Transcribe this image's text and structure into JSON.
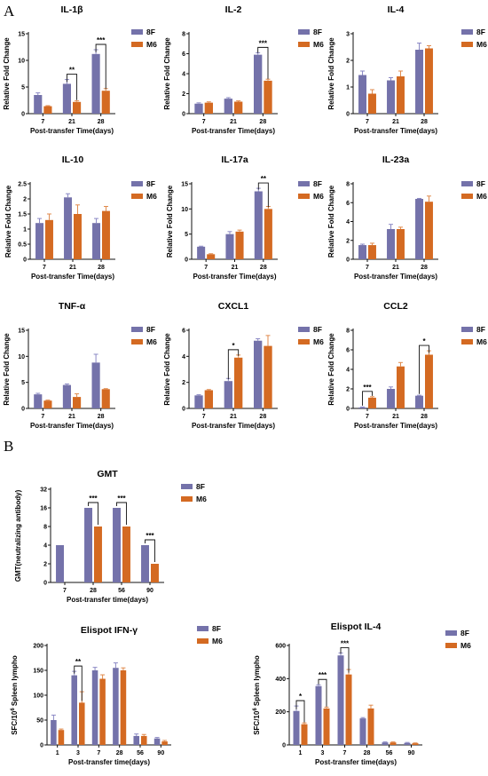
{
  "panel_labels": [
    "A",
    "B"
  ],
  "colors": {
    "8F": "#7472aa",
    "M6": "#d46a22",
    "axis": "#111111",
    "err_8F": "#8a88c4",
    "err_M6": "#e08a4c"
  },
  "chart_data": [
    {
      "type": "bar",
      "title": "IL-1β",
      "xlabel": "Post-transfer Time(days)",
      "ylabel": "Relative Fold Change",
      "categories": [
        "7",
        "21",
        "28"
      ],
      "yticks": [
        0,
        5,
        10,
        15
      ],
      "ylim": [
        0,
        15
      ],
      "series": [
        {
          "name": "8F",
          "values": [
            3.5,
            5.6,
            11.2
          ],
          "errors": [
            0.4,
            0.8,
            0.8
          ]
        },
        {
          "name": "M6",
          "values": [
            1.4,
            2.2,
            4.3
          ],
          "errors": [
            0.1,
            0.2,
            0.4
          ]
        }
      ],
      "annotations": [
        {
          "category": "21",
          "label": "**"
        },
        {
          "category": "28",
          "label": "***"
        }
      ]
    },
    {
      "type": "bar",
      "title": "IL-2",
      "xlabel": "Post-transfer Time(days)",
      "ylabel": "Relative Fold Change",
      "categories": [
        "7",
        "21",
        "28"
      ],
      "yticks": [
        0,
        2,
        4,
        6,
        8
      ],
      "ylim": [
        0,
        8
      ],
      "series": [
        {
          "name": "8F",
          "values": [
            1.0,
            1.5,
            5.9
          ],
          "errors": [
            0.08,
            0.1,
            0.2
          ]
        },
        {
          "name": "M6",
          "values": [
            1.1,
            1.2,
            3.3
          ],
          "errors": [
            0.08,
            0.08,
            0.15
          ]
        }
      ],
      "annotations": [
        {
          "category": "28",
          "label": "***"
        }
      ]
    },
    {
      "type": "bar",
      "title": "IL-4",
      "xlabel": "Post-transfer Time(days)",
      "ylabel": "Relative Fold Change",
      "categories": [
        "7",
        "21",
        "28"
      ],
      "yticks": [
        0,
        1,
        2,
        3
      ],
      "ylim": [
        0,
        3
      ],
      "series": [
        {
          "name": "8F",
          "values": [
            1.45,
            1.25,
            2.4
          ],
          "errors": [
            0.15,
            0.1,
            0.25
          ]
        },
        {
          "name": "M6",
          "values": [
            0.75,
            1.4,
            2.45
          ],
          "errors": [
            0.15,
            0.2,
            0.1
          ]
        }
      ],
      "annotations": []
    },
    {
      "type": "bar",
      "title": "IL-10",
      "xlabel": "Post-transfer Time(days)",
      "ylabel": "Relative Fold Change",
      "categories": [
        "7",
        "21",
        "28"
      ],
      "yticks": [
        0.0,
        0.5,
        1.0,
        1.5,
        2.0,
        2.5
      ],
      "ylim": [
        0,
        2.5
      ],
      "series": [
        {
          "name": "8F",
          "values": [
            1.2,
            2.05,
            1.2
          ],
          "errors": [
            0.15,
            0.12,
            0.15
          ]
        },
        {
          "name": "M6",
          "values": [
            1.3,
            1.5,
            1.6
          ],
          "errors": [
            0.2,
            0.3,
            0.15
          ]
        }
      ],
      "annotations": []
    },
    {
      "type": "bar",
      "title": "IL-17a",
      "xlabel": "Post-transfer Time(days)",
      "ylabel": "Relative Fold Change",
      "categories": [
        "7",
        "21",
        "28"
      ],
      "yticks": [
        0,
        5,
        10,
        15
      ],
      "ylim": [
        0,
        15
      ],
      "series": [
        {
          "name": "8F",
          "values": [
            2.5,
            5.0,
            13.5
          ],
          "errors": [
            0.1,
            0.5,
            0.6
          ]
        },
        {
          "name": "M6",
          "values": [
            1.0,
            5.5,
            10.0
          ],
          "errors": [
            0.1,
            0.3,
            0.5
          ]
        }
      ],
      "annotations": [
        {
          "category": "28",
          "label": "**"
        }
      ]
    },
    {
      "type": "bar",
      "title": "IL-23a",
      "xlabel": "Post-transfer Time(days)",
      "ylabel": "Relative Fold Change",
      "categories": [
        "7",
        "21",
        "28"
      ],
      "yticks": [
        0,
        2,
        4,
        6,
        8
      ],
      "ylim": [
        0,
        8
      ],
      "series": [
        {
          "name": "8F",
          "values": [
            1.5,
            3.2,
            6.4
          ],
          "errors": [
            0.1,
            0.5,
            0.05
          ]
        },
        {
          "name": "M6",
          "values": [
            1.5,
            3.2,
            6.1
          ],
          "errors": [
            0.2,
            0.2,
            0.6
          ]
        }
      ],
      "annotations": []
    },
    {
      "type": "bar",
      "title": "TNF-α",
      "xlabel": "Post-transfer Time(days)",
      "ylabel": "Relative Fold Change",
      "categories": [
        "7",
        "21",
        "28"
      ],
      "yticks": [
        0,
        5,
        10,
        15
      ],
      "ylim": [
        0,
        15
      ],
      "series": [
        {
          "name": "8F",
          "values": [
            2.7,
            4.5,
            8.8
          ],
          "errors": [
            0.2,
            0.2,
            1.6
          ]
        },
        {
          "name": "M6",
          "values": [
            1.5,
            2.2,
            3.7
          ],
          "errors": [
            0.1,
            0.6,
            0.1
          ]
        }
      ],
      "annotations": []
    },
    {
      "type": "bar",
      "title": "CXCL1",
      "xlabel": "Post-transfer Time(days)",
      "ylabel": "Relative Fold Change",
      "categories": [
        "7",
        "21",
        "28"
      ],
      "yticks": [
        0,
        2,
        4,
        6
      ],
      "ylim": [
        0,
        6
      ],
      "series": [
        {
          "name": "8F",
          "values": [
            1.0,
            2.1,
            5.2
          ],
          "errors": [
            0.05,
            0.2,
            0.15
          ]
        },
        {
          "name": "M6",
          "values": [
            1.4,
            3.9,
            4.8
          ],
          "errors": [
            0.05,
            0.2,
            0.8
          ]
        }
      ],
      "annotations": [
        {
          "category": "21",
          "label": "*"
        }
      ]
    },
    {
      "type": "bar",
      "title": "CCL2",
      "xlabel": "Post-transfer Time(days)",
      "ylabel": "Relative Fold Change",
      "categories": [
        "7",
        "21",
        "28"
      ],
      "yticks": [
        0,
        2,
        4,
        6,
        8
      ],
      "ylim": [
        0,
        8
      ],
      "series": [
        {
          "name": "8F",
          "values": [
            0.1,
            2.0,
            1.3
          ],
          "errors": [
            0.05,
            0.2,
            0.05
          ]
        },
        {
          "name": "M6",
          "values": [
            1.1,
            4.3,
            5.5
          ],
          "errors": [
            0.1,
            0.4,
            0.4
          ]
        }
      ],
      "annotations": [
        {
          "category": "7",
          "label": "***"
        },
        {
          "category": "28",
          "label": "*"
        }
      ]
    },
    {
      "type": "bar",
      "title": "GMT",
      "xlabel": "Post-transfer time(days)",
      "ylabel": "GMT(neutralizing antibody)",
      "yscale": "log2",
      "categories": [
        "7",
        "28",
        "56",
        "90"
      ],
      "yticks": [
        0,
        2,
        4,
        8,
        16,
        32
      ],
      "ylim": [
        0,
        32
      ],
      "series": [
        {
          "name": "8F",
          "values": [
            4,
            16,
            16,
            4
          ],
          "errors": [
            0,
            0,
            0,
            0
          ]
        },
        {
          "name": "M6",
          "values": [
            null,
            8,
            8,
            2
          ],
          "errors": [
            0,
            0,
            0,
            0
          ]
        }
      ],
      "annotations": [
        {
          "category": "28",
          "label": "***"
        },
        {
          "category": "56",
          "label": "***"
        },
        {
          "category": "90",
          "label": "***"
        }
      ]
    },
    {
      "type": "bar",
      "title": "Elispot IFN-γ",
      "xlabel": "Post-transfer time(days)",
      "ylabel": "SFC/10",
      "ylabel_exp": "6",
      "ylabel_rest": " Spleen lympho",
      "categories": [
        "1",
        "3",
        "7",
        "28",
        "56",
        "90"
      ],
      "yticks": [
        0,
        50,
        100,
        150,
        200
      ],
      "ylim": [
        0,
        200
      ],
      "series": [
        {
          "name": "8F",
          "values": [
            50,
            140,
            150,
            155,
            18,
            13
          ],
          "errors": [
            10,
            8,
            6,
            10,
            4,
            2
          ]
        },
        {
          "name": "M6",
          "values": [
            30,
            85,
            133,
            150,
            18,
            7
          ],
          "errors": [
            2,
            22,
            8,
            5,
            3,
            2
          ]
        }
      ],
      "annotations": [
        {
          "category": "3",
          "label": "**"
        }
      ]
    },
    {
      "type": "bar",
      "title": "Elispot IL-4",
      "xlabel": "Post-transfer time(days)",
      "ylabel": "SFC/10",
      "ylabel_exp": "6",
      "ylabel_rest": " Spleen lympho",
      "categories": [
        "1",
        "3",
        "7",
        "28",
        "56",
        "90"
      ],
      "yticks": [
        0,
        200,
        400,
        600
      ],
      "ylim": [
        0,
        600
      ],
      "series": [
        {
          "name": "8F",
          "values": [
            205,
            355,
            540,
            160,
            15,
            12
          ],
          "errors": [
            30,
            8,
            15,
            5,
            3,
            3
          ]
        },
        {
          "name": "M6",
          "values": [
            125,
            220,
            425,
            220,
            15,
            10
          ],
          "errors": [
            8,
            8,
            30,
            20,
            3,
            2
          ]
        }
      ],
      "annotations": [
        {
          "category": "1",
          "label": "*"
        },
        {
          "category": "3",
          "label": "***"
        },
        {
          "category": "7",
          "label": "***"
        }
      ]
    }
  ]
}
